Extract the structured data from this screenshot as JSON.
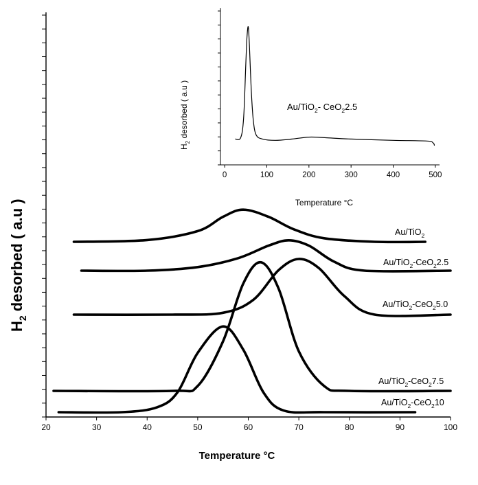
{
  "chart_data": [
    {
      "type": "line",
      "xlabel": "Temperature °C",
      "ylabel_main": "H",
      "ylabel_sub": "2",
      "ylabel_rest": " desorbed ( a.u )",
      "xlim": [
        20,
        100
      ],
      "x_ticks": [
        20,
        30,
        40,
        50,
        60,
        70,
        80,
        90,
        100
      ],
      "y_ticks": 30,
      "grid": false,
      "series": [
        {
          "name": "Au/TiO2",
          "label_parts": [
            "Au/TiO",
            "2",
            ""
          ],
          "baseline": 0.6,
          "points": [
            [
              25.5,
              0
            ],
            [
              40,
              0.1
            ],
            [
              50,
              0.6
            ],
            [
              55,
              1.4
            ],
            [
              59,
              1.8
            ],
            [
              64,
              1.4
            ],
            [
              69,
              0.7
            ],
            [
              75,
              0.2
            ],
            [
              85,
              0
            ],
            [
              95,
              0
            ]
          ]
        },
        {
          "name": "Au/TiO2-CeO2 2.5",
          "label_parts": [
            "Au/TiO",
            "2",
            "-CeO",
            "2",
            "2.5"
          ],
          "baseline": 2.2,
          "points": [
            [
              27,
              0
            ],
            [
              40,
              0
            ],
            [
              50,
              0.2
            ],
            [
              58,
              0.7
            ],
            [
              64,
              1.4
            ],
            [
              68,
              1.7
            ],
            [
              72,
              1.4
            ],
            [
              77,
              0.5
            ],
            [
              83,
              0
            ],
            [
              100,
              0
            ]
          ]
        },
        {
          "name": "Au/TiO2-CeO2 5.0",
          "label_parts": [
            "Au/TiO",
            "2",
            "-CeO",
            "2",
            "5.0"
          ],
          "baseline": 3.7,
          "points": [
            [
              25.5,
              0
            ],
            [
              45,
              0
            ],
            [
              55,
              0.1
            ],
            [
              61,
              0.8
            ],
            [
              66,
              2.4
            ],
            [
              70,
              3.0
            ],
            [
              74,
              2.5
            ],
            [
              79,
              1.0
            ],
            [
              85,
              0
            ],
            [
              100,
              0
            ]
          ]
        },
        {
          "name": "Au/TiO2-CeO2 7.5",
          "label_parts": [
            "Au/TiO",
            "2",
            "-CeO",
            "2",
            "7.5"
          ],
          "baseline": 6.2,
          "points": [
            [
              21.5,
              0
            ],
            [
              45,
              0
            ],
            [
              50,
              0.3
            ],
            [
              55,
              3.0
            ],
            [
              59,
              6.5
            ],
            [
              62.5,
              7.8
            ],
            [
              66,
              6.2
            ],
            [
              70,
              2.4
            ],
            [
              75,
              0.3
            ],
            [
              80,
              0
            ],
            [
              100,
              0
            ]
          ]
        },
        {
          "name": "Au/TiO2-CeO2 10",
          "label_parts": [
            "Au/TiO",
            "2",
            "-CeO",
            "2",
            "10"
          ],
          "baseline": 7.1,
          "points": [
            [
              22.5,
              0
            ],
            [
              35,
              0
            ],
            [
              42,
              0.3
            ],
            [
              46,
              1.2
            ],
            [
              50,
              3.6
            ],
            [
              55,
              5.2
            ],
            [
              59,
              3.8
            ],
            [
              63,
              1.2
            ],
            [
              67,
              0.1
            ],
            [
              75,
              0
            ],
            [
              93,
              0
            ]
          ]
        }
      ]
    },
    {
      "type": "line",
      "inset": true,
      "xlabel": "Temperature °C",
      "ylabel_main": "H",
      "ylabel_sub": "2",
      "ylabel_rest": " desorbed ( a.u )",
      "xlim": [
        -10,
        510
      ],
      "x_ticks": [
        0,
        100,
        200,
        300,
        400,
        500
      ],
      "annotation_parts": [
        "Au/TiO",
        "2",
        "- CeO",
        "2",
        "2.5"
      ],
      "series": [
        {
          "name": "Au/TiO2-CeO2 2.5",
          "points": [
            [
              25,
              0.04
            ],
            [
              38,
              0.05
            ],
            [
              45,
              0.2
            ],
            [
              50,
              0.6
            ],
            [
              53,
              0.82
            ],
            [
              56,
              0.9
            ],
            [
              59,
              0.74
            ],
            [
              63,
              0.42
            ],
            [
              68,
              0.18
            ],
            [
              75,
              0.07
            ],
            [
              90,
              0.04
            ],
            [
              120,
              0.03
            ],
            [
              160,
              0.04
            ],
            [
              200,
              0.055
            ],
            [
              240,
              0.05
            ],
            [
              300,
              0.04
            ],
            [
              400,
              0.03
            ],
            [
              480,
              0.025
            ],
            [
              495,
              0.01
            ],
            [
              498,
              -0.01
            ]
          ]
        }
      ]
    }
  ]
}
